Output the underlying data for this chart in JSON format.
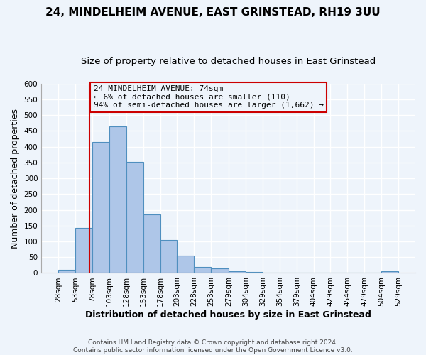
{
  "title": "24, MINDELHEIM AVENUE, EAST GRINSTEAD, RH19 3UU",
  "subtitle": "Size of property relative to detached houses in East Grinstead",
  "xlabel": "Distribution of detached houses by size in East Grinstead",
  "ylabel": "Number of detached properties",
  "bin_edges": [
    28,
    53,
    78,
    103,
    128,
    153,
    178,
    203,
    228,
    253,
    279,
    304,
    329,
    354,
    379,
    404,
    429,
    454,
    479,
    504,
    529
  ],
  "bin_heights": [
    10,
    142,
    415,
    465,
    353,
    186,
    105,
    54,
    19,
    15,
    5,
    3,
    0,
    0,
    0,
    0,
    0,
    0,
    0,
    5
  ],
  "bar_color": "#aec6e8",
  "bar_edge_color": "#4f8fbf",
  "vline_x": 74,
  "vline_color": "#cc0000",
  "annotation_line1": "24 MINDELHEIM AVENUE: 74sqm",
  "annotation_line2": "← 6% of detached houses are smaller (110)",
  "annotation_line3": "94% of semi-detached houses are larger (1,662) →",
  "annotation_box_edge": "#cc0000",
  "ylim": [
    0,
    600
  ],
  "yticks": [
    0,
    50,
    100,
    150,
    200,
    250,
    300,
    350,
    400,
    450,
    500,
    550,
    600
  ],
  "tick_labels": [
    "28sqm",
    "53sqm",
    "78sqm",
    "103sqm",
    "128sqm",
    "153sqm",
    "178sqm",
    "203sqm",
    "228sqm",
    "253sqm",
    "279sqm",
    "304sqm",
    "329sqm",
    "354sqm",
    "379sqm",
    "404sqm",
    "429sqm",
    "454sqm",
    "479sqm",
    "504sqm",
    "529sqm"
  ],
  "footer_text": "Contains HM Land Registry data © Crown copyright and database right 2024.\nContains public sector information licensed under the Open Government Licence v3.0.",
  "bg_color": "#eef4fb",
  "grid_color": "#ffffff",
  "title_fontsize": 11,
  "subtitle_fontsize": 9.5,
  "axis_label_fontsize": 9,
  "tick_fontsize": 7.5,
  "annotation_fontsize": 8,
  "footer_fontsize": 6.5
}
